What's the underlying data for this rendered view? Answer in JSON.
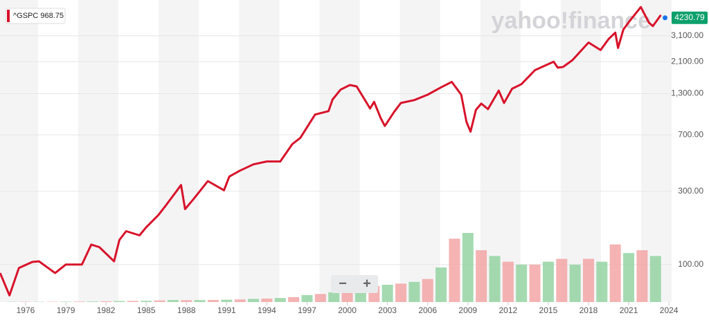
{
  "chart_data": {
    "type": "line",
    "legend": "^GSPC 968.75",
    "last_price": "4230.79",
    "watermark": "yahoo!finance",
    "controls": [
      "−",
      "+"
    ],
    "log_scale": true,
    "grid": true,
    "color": "#d8122a",
    "xlim": [
      1974.09,
      2024.2
    ],
    "ylim": [
      57,
      5300
    ],
    "xticks": [
      1976,
      1979,
      1982,
      1985,
      1988,
      1991,
      1994,
      1997,
      2000,
      2003,
      2006,
      2009,
      2012,
      2015,
      2018,
      2021,
      2024
    ],
    "yticks": [
      {
        "value": 100,
        "label": "100.00"
      },
      {
        "value": 300,
        "label": "300.00"
      },
      {
        "value": 700,
        "label": "700.00"
      },
      {
        "value": 1300,
        "label": "1,300.00"
      },
      {
        "value": 2100,
        "label": "2,100.00"
      },
      {
        "value": 3100,
        "label": "3,100.00"
      }
    ],
    "series": [
      {
        "name": "^GSPC",
        "color": "#d8122a",
        "x": [
          1974.1,
          1974.8,
          1975.5,
          1976.5,
          1977.0,
          1978.2,
          1979.0,
          1980.2,
          1980.9,
          1981.5,
          1982.6,
          1983.0,
          1983.5,
          1984.5,
          1985.0,
          1985.9,
          1986.5,
          1987.6,
          1987.9,
          1988.5,
          1989.6,
          1990.8,
          1991.2,
          1992.0,
          1993.0,
          1994.0,
          1995.0,
          1995.9,
          1996.5,
          1997.6,
          1998.6,
          1998.9,
          1999.5,
          2000.2,
          2000.7,
          2001.7,
          2002.0,
          2002.5,
          2002.8,
          2003.5,
          2004.0,
          2005.0,
          2006.0,
          2007.0,
          2007.8,
          2008.5,
          2008.9,
          2009.2,
          2009.6,
          2010.0,
          2010.5,
          2011.3,
          2011.7,
          2012.3,
          2013.0,
          2014.0,
          2015.4,
          2015.7,
          2016.1,
          2016.8,
          2018.0,
          2018.9,
          2019.5,
          2020.0,
          2020.2,
          2020.6,
          2021.0,
          2021.9,
          2022.5,
          2022.8,
          2023.4
        ],
        "values": [
          88,
          63,
          95,
          104,
          105,
          88,
          100,
          100,
          135,
          130,
          105,
          145,
          165,
          155,
          175,
          210,
          245,
          330,
          230,
          265,
          350,
          305,
          375,
          410,
          450,
          470,
          470,
          610,
          670,
          950,
          1000,
          1190,
          1380,
          1480,
          1450,
          1040,
          1150,
          900,
          800,
          990,
          1130,
          1180,
          1280,
          1430,
          1550,
          1280,
          850,
          735,
          1020,
          1120,
          1030,
          1360,
          1130,
          1400,
          1500,
          1850,
          2100,
          1920,
          1940,
          2150,
          2800,
          2500,
          2950,
          3250,
          2580,
          3400,
          3800,
          4770,
          3780,
          3580,
          4230.79
        ]
      }
    ],
    "volume": {
      "x": [
        1975,
        1976,
        1977,
        1978,
        1979,
        1980,
        1981,
        1982,
        1983,
        1984,
        1985,
        1986,
        1987,
        1988,
        1989,
        1990,
        1991,
        1992,
        1993,
        1994,
        1995,
        1996,
        1997,
        1998,
        1999,
        2000,
        2001,
        2002,
        2003,
        2004,
        2005,
        2006,
        2007,
        2008,
        2009,
        2010,
        2011,
        2012,
        2013,
        2014,
        2015,
        2016,
        2017,
        2018,
        2019,
        2020,
        2021,
        2022,
        2023
      ],
      "values": [
        0.4,
        0.5,
        0.5,
        0.6,
        0.7,
        0.9,
        1,
        1.3,
        1.8,
        2,
        2.2,
        2.8,
        3.5,
        3.2,
        3.4,
        3.6,
        4,
        4.5,
        5.5,
        6,
        7,
        8.5,
        12,
        14,
        17,
        22,
        25,
        28,
        30,
        32,
        35,
        40,
        60,
        110,
        120,
        90,
        80,
        70,
        65,
        65,
        70,
        75,
        65,
        75,
        70,
        100,
        85,
        90,
        80
      ],
      "colors": [
        "#8fd19e",
        "#f2a0a0"
      ]
    }
  }
}
